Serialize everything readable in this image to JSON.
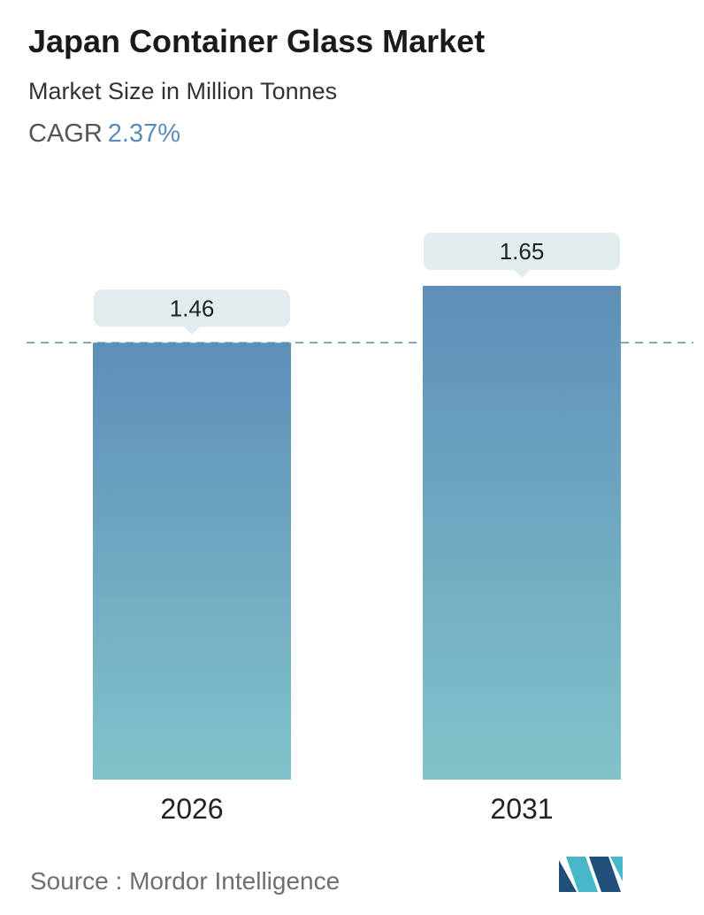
{
  "header": {
    "title": "Japan Container Glass Market",
    "subtitle": "Market Size in Million Tonnes",
    "cagr_label": "CAGR",
    "cagr_value": "2.37%"
  },
  "footer": {
    "source_label": "Source :",
    "source_name": "Mordor Intelligence",
    "logo_icon": "mordor-intelligence-logo-icon"
  },
  "colors": {
    "bar_top": "#5d8fb8",
    "bar_bottom": "#82c3ca",
    "label_bg": "#e2ecef",
    "reference_line": "#5f8aad",
    "cagr_accent": "#5b8db8",
    "logo_dark": "#1f4f7a",
    "logo_light": "#47b8c9"
  },
  "chart_data": {
    "type": "bar",
    "categories": [
      "2026",
      "2031"
    ],
    "values": [
      1.46,
      1.65
    ],
    "value_labels": [
      "1.46",
      "1.65"
    ],
    "ylim": [
      0,
      1.65
    ],
    "grid": false,
    "reference_line": {
      "value": 1.46,
      "style": "dashed"
    }
  }
}
